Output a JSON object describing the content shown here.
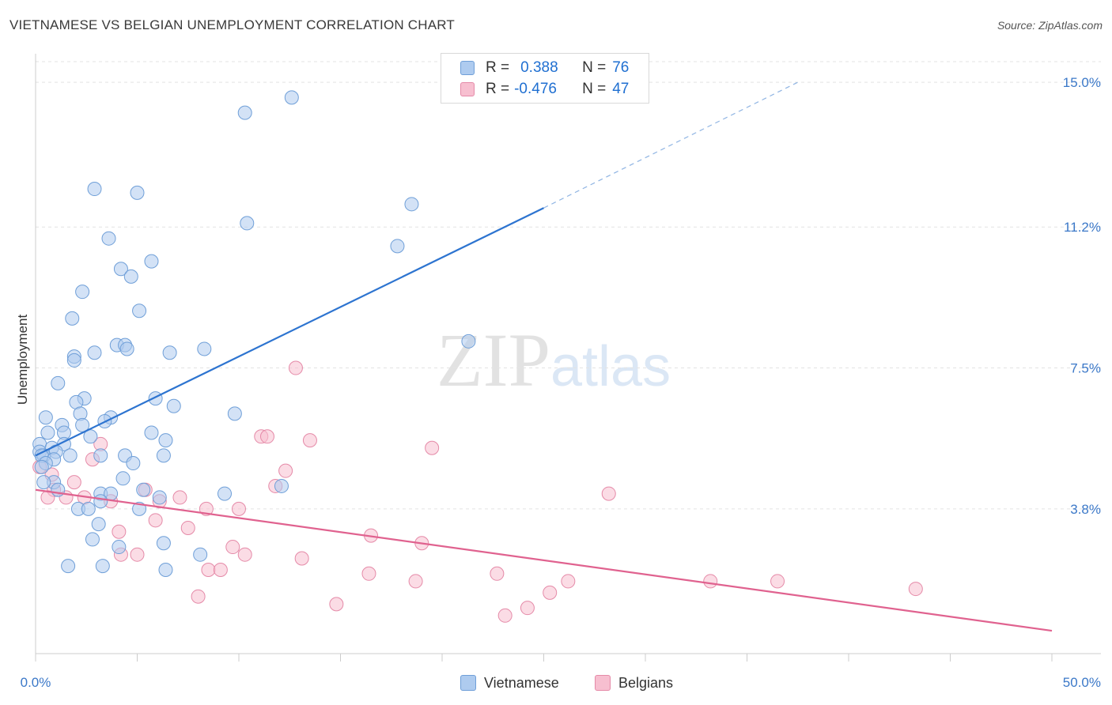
{
  "header": {
    "title": "VIETNAMESE VS BELGIAN UNEMPLOYMENT CORRELATION CHART",
    "source": "Source: ZipAtlas.com"
  },
  "watermark": {
    "zip": "ZIP",
    "atlas": "atlas"
  },
  "legend": {
    "rows": [
      {
        "r_label": "R =",
        "r_value": "0.388",
        "n_label": "N =",
        "n_value": "76"
      },
      {
        "r_label": "R =",
        "r_value": "-0.476",
        "n_label": "N =",
        "n_value": "47"
      }
    ]
  },
  "colors": {
    "vietnamese_fill": "#aecbef",
    "vietnamese_stroke": "#6f9fd8",
    "vietnamese_line": "#2d74d0",
    "belgians_fill": "#f7bfd0",
    "belgians_stroke": "#e58aa8",
    "belgians_line": "#e0628f",
    "tick_label": "#3b78c8"
  },
  "chart_data": {
    "type": "scatter",
    "title": "VIETNAMESE VS BELGIAN UNEMPLOYMENT CORRELATION CHART",
    "xlabel": "",
    "ylabel": "Unemployment",
    "xlim": [
      0,
      50
    ],
    "ylim": [
      0,
      15.5
    ],
    "x_tick_labels": [
      "0.0%",
      "50.0%"
    ],
    "y_ticks": [
      3.8,
      7.5,
      11.2,
      15.0
    ],
    "y_tick_labels": [
      "3.8%",
      "7.5%",
      "11.2%",
      "15.0%"
    ],
    "grid": true,
    "legend_position": "bottom-center",
    "series": [
      {
        "name": "Vietnamese",
        "r": 0.388,
        "n": 76,
        "trend": {
          "x": [
            0,
            25.0
          ],
          "y": [
            5.2,
            11.7
          ],
          "dashed_to": {
            "x": 37.5,
            "y": 15.0
          }
        },
        "points": [
          [
            12.6,
            14.6
          ],
          [
            10.3,
            14.2
          ],
          [
            2.9,
            12.2
          ],
          [
            5.0,
            12.1
          ],
          [
            18.5,
            11.8
          ],
          [
            10.4,
            11.3
          ],
          [
            3.6,
            10.9
          ],
          [
            17.8,
            10.7
          ],
          [
            5.7,
            10.3
          ],
          [
            4.2,
            10.1
          ],
          [
            4.7,
            9.9
          ],
          [
            2.3,
            9.5
          ],
          [
            5.1,
            9.0
          ],
          [
            1.8,
            8.8
          ],
          [
            4.0,
            8.1
          ],
          [
            4.4,
            8.1
          ],
          [
            4.5,
            8.0
          ],
          [
            8.3,
            8.0
          ],
          [
            2.9,
            7.9
          ],
          [
            6.6,
            7.9
          ],
          [
            1.9,
            7.8
          ],
          [
            1.9,
            7.7
          ],
          [
            21.3,
            8.2
          ],
          [
            1.1,
            7.1
          ],
          [
            5.9,
            6.7
          ],
          [
            2.4,
            6.7
          ],
          [
            2.0,
            6.6
          ],
          [
            6.8,
            6.5
          ],
          [
            2.2,
            6.3
          ],
          [
            9.8,
            6.3
          ],
          [
            0.5,
            6.2
          ],
          [
            3.7,
            6.2
          ],
          [
            2.3,
            6.0
          ],
          [
            3.4,
            6.1
          ],
          [
            1.3,
            6.0
          ],
          [
            0.6,
            5.8
          ],
          [
            1.4,
            5.8
          ],
          [
            5.7,
            5.8
          ],
          [
            2.7,
            5.7
          ],
          [
            6.4,
            5.6
          ],
          [
            0.2,
            5.5
          ],
          [
            0.8,
            5.4
          ],
          [
            1.4,
            5.5
          ],
          [
            0.2,
            5.3
          ],
          [
            1.0,
            5.3
          ],
          [
            0.4,
            5.2
          ],
          [
            1.7,
            5.2
          ],
          [
            3.2,
            5.2
          ],
          [
            4.4,
            5.2
          ],
          [
            6.3,
            5.2
          ],
          [
            0.3,
            5.2
          ],
          [
            0.9,
            5.1
          ],
          [
            4.8,
            5.0
          ],
          [
            0.5,
            5.0
          ],
          [
            0.3,
            4.9
          ],
          [
            4.3,
            4.6
          ],
          [
            0.9,
            4.5
          ],
          [
            0.4,
            4.5
          ],
          [
            12.1,
            4.4
          ],
          [
            5.3,
            4.3
          ],
          [
            1.1,
            4.3
          ],
          [
            3.2,
            4.2
          ],
          [
            3.7,
            4.2
          ],
          [
            9.3,
            4.2
          ],
          [
            6.1,
            4.1
          ],
          [
            3.2,
            4.0
          ],
          [
            5.1,
            3.8
          ],
          [
            2.1,
            3.8
          ],
          [
            2.6,
            3.8
          ],
          [
            3.1,
            3.4
          ],
          [
            2.8,
            3.0
          ],
          [
            6.3,
            2.9
          ],
          [
            4.1,
            2.8
          ],
          [
            8.1,
            2.6
          ],
          [
            1.6,
            2.3
          ],
          [
            3.3,
            2.3
          ],
          [
            6.4,
            2.2
          ]
        ]
      },
      {
        "name": "Belgians",
        "r": -0.476,
        "n": 47,
        "trend": {
          "x": [
            0,
            50.0
          ],
          "y": [
            4.3,
            0.6
          ]
        },
        "points": [
          [
            12.8,
            7.5
          ],
          [
            11.1,
            5.7
          ],
          [
            11.4,
            5.7
          ],
          [
            13.5,
            5.6
          ],
          [
            19.5,
            5.4
          ],
          [
            3.2,
            5.5
          ],
          [
            2.8,
            5.1
          ],
          [
            0.2,
            4.9
          ],
          [
            0.8,
            4.7
          ],
          [
            12.3,
            4.8
          ],
          [
            1.9,
            4.5
          ],
          [
            11.8,
            4.4
          ],
          [
            0.9,
            4.3
          ],
          [
            5.4,
            4.3
          ],
          [
            0.6,
            4.1
          ],
          [
            1.5,
            4.1
          ],
          [
            2.4,
            4.1
          ],
          [
            3.7,
            4.0
          ],
          [
            6.1,
            4.0
          ],
          [
            7.1,
            4.1
          ],
          [
            28.2,
            4.2
          ],
          [
            8.4,
            3.8
          ],
          [
            10.0,
            3.8
          ],
          [
            5.9,
            3.5
          ],
          [
            7.5,
            3.3
          ],
          [
            4.1,
            3.2
          ],
          [
            16.5,
            3.1
          ],
          [
            19.0,
            2.9
          ],
          [
            9.7,
            2.8
          ],
          [
            10.3,
            2.6
          ],
          [
            5.0,
            2.6
          ],
          [
            4.2,
            2.6
          ],
          [
            13.1,
            2.5
          ],
          [
            8.5,
            2.2
          ],
          [
            9.1,
            2.2
          ],
          [
            16.4,
            2.1
          ],
          [
            22.7,
            2.1
          ],
          [
            18.7,
            1.9
          ],
          [
            26.2,
            1.9
          ],
          [
            33.2,
            1.9
          ],
          [
            36.5,
            1.9
          ],
          [
            43.3,
            1.7
          ],
          [
            25.3,
            1.6
          ],
          [
            8.0,
            1.5
          ],
          [
            14.8,
            1.3
          ],
          [
            24.2,
            1.2
          ],
          [
            23.1,
            1.0
          ]
        ]
      }
    ]
  },
  "bottom_legend": {
    "vietnamese": "Vietnamese",
    "belgians": "Belgians"
  }
}
